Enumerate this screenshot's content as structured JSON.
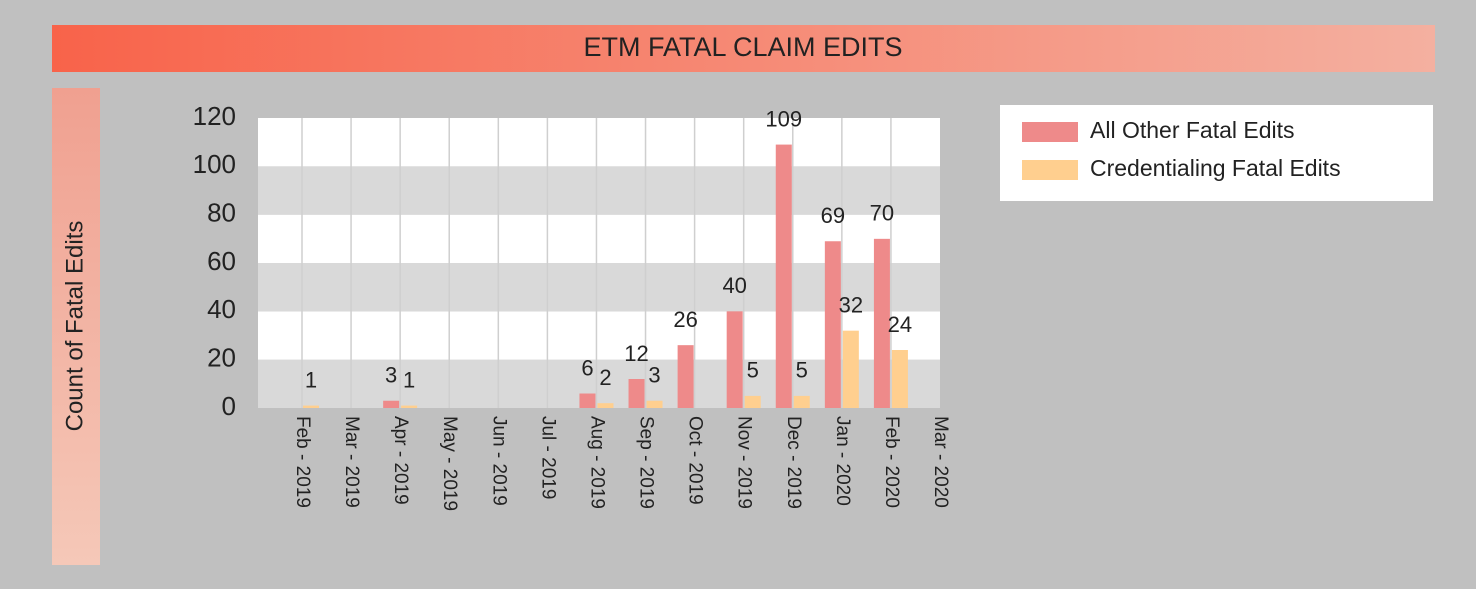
{
  "chart_data": {
    "type": "bar",
    "title": "ETM FATAL CLAIM EDITS",
    "y_label": "Count of Fatal Edits",
    "categories": [
      "Feb - 2019",
      "Mar - 2019",
      "Apr - 2019",
      "May - 2019",
      "Jun - 2019",
      "Jul - 2019",
      "Aug - 2019",
      "Sep - 2019",
      "Oct - 2019",
      "Nov - 2019",
      "Dec - 2019",
      "Jan - 2020",
      "Feb - 2020",
      "Mar - 2020"
    ],
    "series": [
      {
        "name": "All Other Fatal Edits",
        "color": "#ee8a8a",
        "values": [
          null,
          null,
          3,
          null,
          null,
          null,
          6,
          12,
          26,
          40,
          109,
          69,
          70,
          null
        ]
      },
      {
        "name": "Credentialing Fatal Edits",
        "color": "#ffcf8f",
        "values": [
          1,
          null,
          1,
          null,
          null,
          null,
          2,
          3,
          null,
          5,
          5,
          32,
          24,
          null
        ]
      }
    ],
    "ylim": [
      0,
      120
    ],
    "yticks": [
      0,
      20,
      40,
      60,
      80,
      100,
      120
    ],
    "grid": true,
    "legend": "top-right"
  }
}
